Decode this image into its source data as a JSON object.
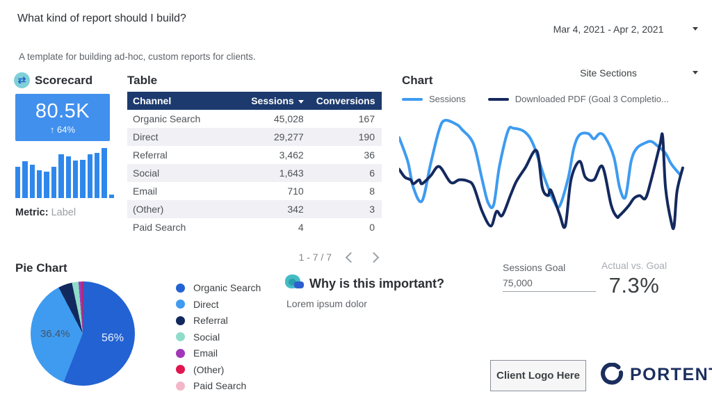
{
  "header": {
    "title": "What kind of report should I build?",
    "subtitle": "A template for building ad-hoc, custom reports for clients."
  },
  "controls": {
    "date_range": "Mar 4, 2021 - Apr 2, 2021",
    "site_sections": "Site Sections"
  },
  "scorecard": {
    "title": "Scorecard",
    "icon": "swap-arrows-icon",
    "value": "80.5K",
    "delta_arrow": "↑",
    "delta": "64%",
    "metric_label": "Metric:",
    "metric_value": "Label"
  },
  "table": {
    "title": "Table",
    "headers": [
      "Channel",
      "Sessions",
      "Conversions"
    ],
    "sorted_by": "Sessions",
    "rows": [
      {
        "channel": "Organic Search",
        "sessions": "45,028",
        "conversions": "167"
      },
      {
        "channel": "Direct",
        "sessions": "29,277",
        "conversions": "190"
      },
      {
        "channel": "Referral",
        "sessions": "3,462",
        "conversions": "36"
      },
      {
        "channel": "Social",
        "sessions": "1,643",
        "conversions": "6"
      },
      {
        "channel": "Email",
        "sessions": "710",
        "conversions": "8"
      },
      {
        "channel": "(Other)",
        "sessions": "342",
        "conversions": "3"
      },
      {
        "channel": "Paid Search",
        "sessions": "4",
        "conversions": "0"
      }
    ],
    "pagination": "1 - 7 / 7"
  },
  "chart": {
    "title": "Chart",
    "legend_sessions": "Sessions",
    "legend_pdf": "Downloaded PDF (Goal 3 Completio..."
  },
  "pie": {
    "title": "Pie Chart",
    "label_primary": "56%",
    "label_secondary": "36.4%"
  },
  "importance": {
    "icon": "chat-blob-icon",
    "title": "Why is this important?",
    "body": "Lorem ipsum dolor"
  },
  "goal": {
    "label": "Sessions Goal",
    "value": "75,000",
    "actual_label": "Actual vs. Goal",
    "actual_value": "7.3%"
  },
  "footer": {
    "client_logo_text": "Client Logo Here",
    "brand": "PORTENT"
  },
  "colors": {
    "blue_primary": "#2F87EC",
    "blue_light": "#3E9BF0",
    "navy": "#14295E",
    "table_header": "#1C3A6E",
    "card_blue": "#4190EE",
    "teal_icon": "#7FD0D8",
    "brand_navy": "#1B2F5E"
  },
  "chart_data": [
    {
      "type": "bar",
      "name": "scorecard-sparkline",
      "title": "",
      "xlabel": "",
      "ylabel": "",
      "axes_hidden": true,
      "values_pct": [
        62,
        74,
        66,
        56,
        53,
        63,
        88,
        83,
        75,
        76,
        87,
        90,
        100,
        7
      ],
      "color": "#2F87EC"
    },
    {
      "type": "line",
      "name": "sessions-vs-goal-completions",
      "title": "Chart",
      "x_range": [
        "Mar 4, 2021",
        "Apr 2, 2021"
      ],
      "axes_hidden": true,
      "legend_position": "top",
      "series": [
        {
          "name": "Sessions",
          "color": "#3E9BF0",
          "points_pct": [
            [
              0,
              79
            ],
            [
              3,
              61
            ],
            [
              5,
              41
            ],
            [
              8,
              31
            ],
            [
              11,
              59
            ],
            [
              14,
              85
            ],
            [
              16,
              92
            ],
            [
              20,
              89
            ],
            [
              22,
              85
            ],
            [
              26,
              74
            ],
            [
              29,
              47
            ],
            [
              31,
              30
            ],
            [
              33,
              28
            ],
            [
              35,
              57
            ],
            [
              38,
              84
            ],
            [
              40,
              86
            ],
            [
              44,
              83
            ],
            [
              47,
              73
            ],
            [
              51,
              47
            ],
            [
              54,
              31
            ],
            [
              56,
              27
            ],
            [
              59,
              48
            ],
            [
              61,
              71
            ],
            [
              63,
              81
            ],
            [
              66,
              82
            ],
            [
              68,
              78
            ],
            [
              70,
              82
            ],
            [
              72,
              79
            ],
            [
              75,
              64
            ],
            [
              77,
              41
            ],
            [
              79,
              34
            ],
            [
              81,
              61
            ],
            [
              83,
              71
            ],
            [
              86,
              75
            ],
            [
              88,
              76
            ],
            [
              90,
              73
            ],
            [
              93,
              67
            ],
            [
              95,
              59
            ],
            [
              98,
              51
            ]
          ]
        },
        {
          "name": "Downloaded PDF (Goal 3 Completions)",
          "color": "#14295E",
          "points_pct": [
            [
              0,
              55
            ],
            [
              2,
              49
            ],
            [
              4,
              47
            ],
            [
              5,
              44
            ],
            [
              7,
              47
            ],
            [
              8,
              44
            ],
            [
              11,
              50
            ],
            [
              14,
              57
            ],
            [
              18,
              45
            ],
            [
              21,
              47
            ],
            [
              24,
              46
            ],
            [
              26,
              42
            ],
            [
              29,
              23
            ],
            [
              32,
              12
            ],
            [
              34,
              23
            ],
            [
              36,
              20
            ],
            [
              39,
              36
            ],
            [
              41,
              46
            ],
            [
              44,
              56
            ],
            [
              48,
              69
            ],
            [
              50,
              41
            ],
            [
              52,
              35
            ],
            [
              53,
              39
            ],
            [
              56,
              21
            ],
            [
              58,
              12
            ],
            [
              60,
              47
            ],
            [
              63,
              61
            ],
            [
              65,
              49
            ],
            [
              68,
              47
            ],
            [
              71,
              57
            ],
            [
              74,
              28
            ],
            [
              76,
              19
            ],
            [
              77,
              20
            ],
            [
              80,
              27
            ],
            [
              82,
              33
            ],
            [
              84,
              35
            ],
            [
              86,
              33
            ],
            [
              88,
              47
            ],
            [
              91,
              73
            ],
            [
              92,
              80
            ],
            [
              93,
              41
            ],
            [
              95,
              15
            ],
            [
              96,
              12
            ],
            [
              97,
              38
            ],
            [
              99,
              56
            ]
          ]
        }
      ]
    },
    {
      "type": "pie",
      "name": "sessions-by-channel",
      "title": "Pie Chart",
      "categories": [
        "Organic Search",
        "Direct",
        "Referral",
        "Social",
        "Email",
        "(Other)",
        "Paid Search"
      ],
      "values": [
        45028,
        29277,
        3462,
        1643,
        710,
        342,
        4
      ],
      "shown_labels": {
        "Organic Search": "56%",
        "Direct": "36.4%"
      },
      "colors": [
        "#2362D3",
        "#3E9BF0",
        "#12295E",
        "#8FDCC8",
        "#A137B9",
        "#E0174F",
        "#F3B7C9"
      ],
      "legend_position": "right"
    }
  ]
}
